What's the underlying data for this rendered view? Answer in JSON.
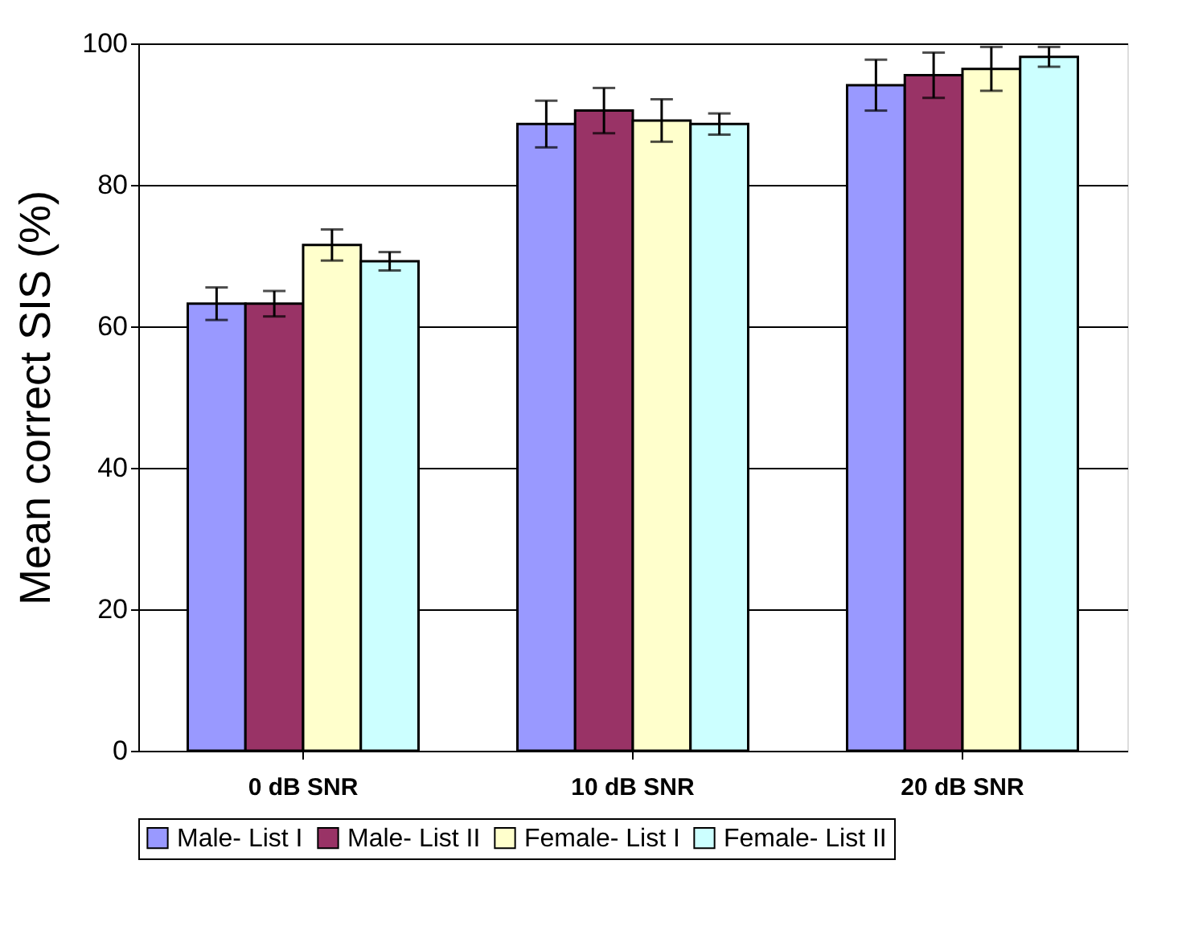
{
  "chart_data": {
    "type": "bar",
    "ylabel": "Mean correct SIS (%)",
    "categories": [
      "0 dB SNR",
      "10 dB SNR",
      "20 dB SNR"
    ],
    "series": [
      {
        "name": "Male- List I",
        "color": "#9999ff",
        "values": [
          63.2,
          88.6,
          94.1
        ],
        "errors": [
          2.3,
          3.3,
          3.6
        ]
      },
      {
        "name": "Male- List II",
        "color": "#993366",
        "values": [
          63.2,
          90.5,
          95.5
        ],
        "errors": [
          1.8,
          3.2,
          3.2
        ]
      },
      {
        "name": "Female- List I",
        "color": "#ffffcc",
        "values": [
          71.5,
          89.1,
          96.4
        ],
        "errors": [
          2.2,
          3.0,
          3.1
        ]
      },
      {
        "name": "Female- List II",
        "color": "#ccffff",
        "values": [
          69.2,
          88.6,
          98.1
        ],
        "errors": [
          1.3,
          1.5,
          1.4
        ]
      }
    ],
    "ylim": [
      0,
      100
    ],
    "yticks": [
      0,
      20,
      40,
      60,
      80,
      100
    ],
    "grid": "y",
    "legend": "bottom"
  }
}
